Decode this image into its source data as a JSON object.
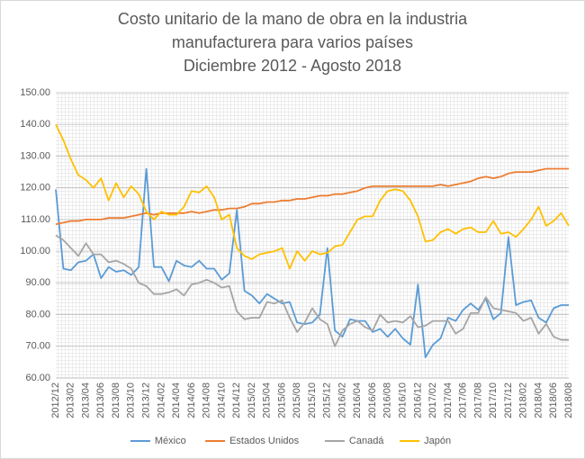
{
  "chart_data": {
    "type": "line",
    "title": [
      "Costo unitario de la mano de obra en la industria",
      "manufacturera para varios países",
      "Diciembre 2012 - Agosto 2018"
    ],
    "categories": [
      "2012/12",
      null,
      "2013/02",
      null,
      "2013/04",
      null,
      "2013/06",
      null,
      "2013/08",
      null,
      "2013/10",
      null,
      "2013/12",
      null,
      "2014/02",
      null,
      "2014/04",
      null,
      "2014/06",
      null,
      "2014/08",
      null,
      "2014/10",
      null,
      "2014/12",
      null,
      "2015/02",
      null,
      "2015/04",
      null,
      "2015/06",
      null,
      "2015/08",
      null,
      "2015/10",
      null,
      "2015/12",
      null,
      "2016/02",
      null,
      "2016/04",
      null,
      "2016/06",
      null,
      "2016/08",
      null,
      "2016/10",
      null,
      "2016/12",
      null,
      "2017/02",
      null,
      "2017/04",
      null,
      "2017/06",
      null,
      "2017/08",
      null,
      "2017/10",
      null,
      "2017/12",
      null,
      "2018/02",
      null,
      "2018/04",
      null,
      "2018/06",
      null,
      "2018/08"
    ],
    "series": [
      {
        "name": "México",
        "color": "#5b9bd5",
        "values": [
          119.5,
          94.5,
          94,
          96.5,
          97,
          99,
          91.5,
          95,
          93.5,
          94,
          92.5,
          95,
          126,
          95,
          95,
          90.5,
          97,
          95.5,
          95,
          97,
          94.5,
          94.5,
          91,
          93,
          113,
          87.5,
          86,
          83.5,
          86.5,
          85,
          83.5,
          84,
          77.5,
          77,
          77.5,
          80,
          101,
          75,
          73,
          78.5,
          78,
          78,
          74.5,
          75.5,
          73,
          75.5,
          72.5,
          70.5,
          89.5,
          66.5,
          70.5,
          72.5,
          79,
          78,
          81.5,
          83.5,
          81.5,
          85,
          78.5,
          80.5,
          104.5,
          83,
          84,
          84.5,
          79,
          77.5,
          82,
          83,
          83
        ]
      },
      {
        "name": "Estados Unidos",
        "color": "#ed7d31",
        "values": [
          108.5,
          109,
          109.5,
          109.5,
          110,
          110,
          110,
          110.5,
          110.5,
          110.5,
          111,
          111.5,
          112,
          111.5,
          112,
          112,
          112,
          112,
          112.5,
          112,
          112.5,
          113,
          113,
          113.5,
          113.5,
          114,
          115,
          115,
          115.5,
          115.5,
          116,
          116,
          116.5,
          116.5,
          117,
          117.5,
          117.5,
          118,
          118,
          118.5,
          119,
          120,
          120.5,
          120.5,
          120.5,
          120.5,
          120.5,
          120.5,
          120.5,
          120.5,
          120.5,
          121,
          120.5,
          121,
          121.5,
          122,
          123,
          123.5,
          123,
          123.5,
          124.5,
          125,
          125,
          125,
          125.5,
          126,
          126,
          126,
          126
        ]
      },
      {
        "name": "Canadá",
        "color": "#a5a5a5",
        "values": [
          105,
          103.5,
          101,
          98.5,
          102.5,
          99,
          99,
          96.5,
          97,
          96,
          94.5,
          90,
          89,
          86.5,
          86.5,
          87,
          88,
          86,
          89.5,
          90,
          91,
          90,
          88.5,
          89,
          81,
          78.5,
          79,
          79,
          84,
          83.5,
          84.5,
          79,
          74.5,
          77.5,
          82,
          78.5,
          77,
          70,
          75,
          77,
          78,
          76,
          75,
          80,
          77.5,
          78,
          77.5,
          79.5,
          76,
          76.5,
          78,
          78,
          78,
          74,
          75.5,
          80.5,
          80.5,
          85.5,
          82,
          81.5,
          81,
          80.5,
          78,
          79,
          74,
          77,
          73,
          72,
          72
        ]
      },
      {
        "name": "Japón",
        "color": "#ffc000",
        "values": [
          140,
          135,
          129,
          124,
          122.5,
          120,
          123,
          116,
          121.5,
          117,
          120.5,
          118,
          112.5,
          110,
          112.5,
          111.5,
          111.5,
          114,
          119,
          118.5,
          120.5,
          117,
          110,
          111.5,
          101,
          98.5,
          97.5,
          99,
          99.5,
          100,
          101,
          94.5,
          100,
          97,
          100,
          99,
          99.5,
          101.5,
          102,
          106,
          110,
          111,
          111,
          116,
          119,
          119.5,
          119,
          116,
          111,
          103,
          103.5,
          106,
          107,
          105.5,
          107,
          107.5,
          106,
          106,
          109.5,
          105.5,
          106,
          104.5,
          107,
          110,
          114,
          108,
          109.5,
          112,
          108
        ]
      }
    ],
    "ylim": [
      60,
      150
    ],
    "yticks": [
      {
        "value": 60,
        "label": "60.00"
      },
      {
        "value": 70,
        "label": "70.00"
      },
      {
        "value": 80,
        "label": "80.00"
      },
      {
        "value": 90,
        "label": "90.00"
      },
      {
        "value": 100,
        "label": "100.00"
      },
      {
        "value": 110,
        "label": "110.00"
      },
      {
        "value": 120,
        "label": "120.00"
      },
      {
        "value": 130,
        "label": "130.00"
      },
      {
        "value": 140,
        "label": "140.00"
      },
      {
        "value": 150,
        "label": "150.00"
      }
    ],
    "grid": true,
    "legend": "bottom"
  }
}
